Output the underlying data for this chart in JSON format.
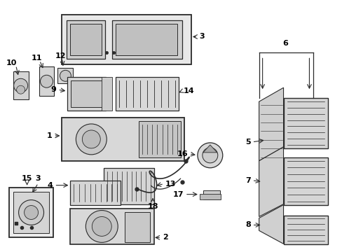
{
  "bg_color": "#ffffff",
  "fig_width": 4.89,
  "fig_height": 3.6,
  "dpi": 100,
  "line_color": "#2a2a2a",
  "text_color": "#000000",
  "fill_main": "#dddddd",
  "fill_light": "#ebebeb",
  "fill_dark": "#bbbbbb"
}
